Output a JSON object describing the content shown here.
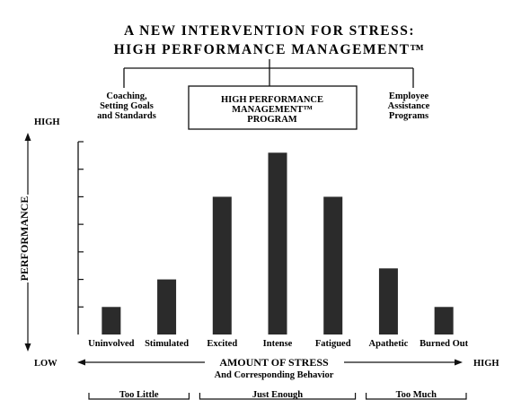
{
  "header": {
    "title_line1": "A NEW INTERVENTION FOR STRESS:",
    "title_line2": "HIGH PERFORMANCE MANAGEMENT™"
  },
  "interventions": {
    "left": [
      "Coaching,",
      "Setting Goals",
      "and Standards"
    ],
    "center": [
      "HIGH PERFORMANCE",
      "MANAGEMENT™",
      "PROGRAM"
    ],
    "right": [
      "Employee",
      "Assistance",
      "Programs"
    ]
  },
  "axes": {
    "y_high": "HIGH",
    "y_low": "LOW",
    "y_title": "PERFORMANCE",
    "x_title": "AMOUNT OF STRESS",
    "x_subtitle": "And Corresponding Behavior",
    "x_high": "HIGH"
  },
  "groups": [
    {
      "label": "Too Little"
    },
    {
      "label": "Just Enough"
    },
    {
      "label": "Too Much"
    }
  ],
  "chart_data": {
    "type": "bar",
    "categories": [
      "Uninvolved",
      "Stimulated",
      "Excited",
      "Intense",
      "Fatigued",
      "Apathetic",
      "Burned Out"
    ],
    "values": [
      1,
      2,
      5,
      6.6,
      5,
      2.4,
      1
    ],
    "ylim": [
      0,
      7
    ],
    "grid": false,
    "bar_color": "#2b2b2b"
  }
}
